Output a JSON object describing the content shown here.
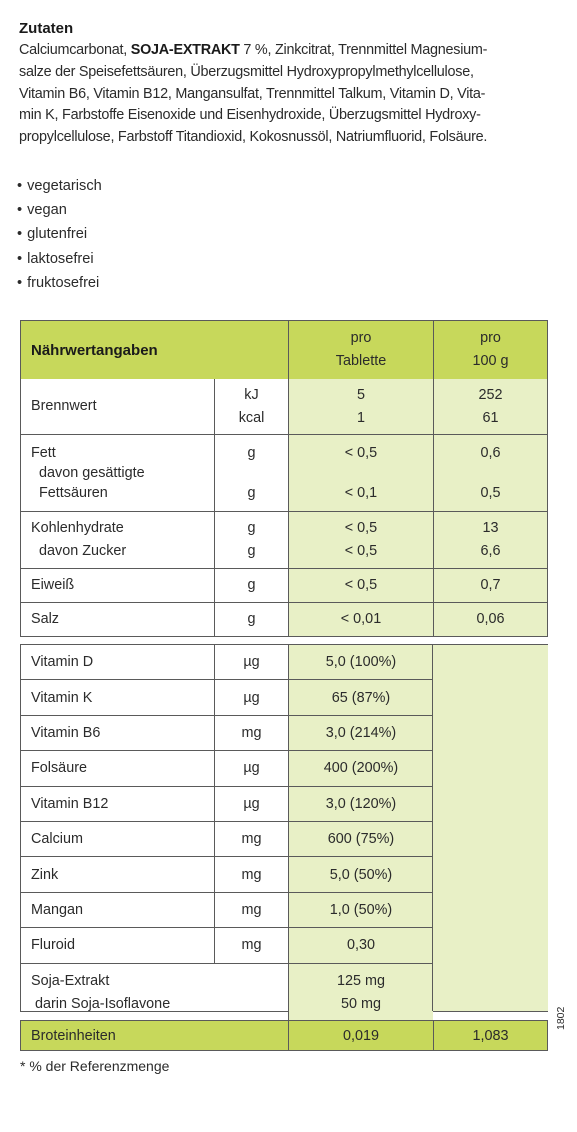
{
  "ingredients": {
    "heading": "Zutaten",
    "lines": [
      {
        "pre": "Calciumcarbonat, ",
        "bold": "SOJA-EXTRAKT",
        "post": " 7 %, Zinkcitrat, Trennmittel Magnesium-"
      },
      {
        "pre": "salze der Speisefettsäuren, Überzugsmittel Hydroxypropylmethylcellulose,",
        "bold": "",
        "post": ""
      },
      {
        "pre": "Vitamin B6, Vitamin B12, Mangansulfat, Trennmittel Talkum, Vitamin D, Vita-",
        "bold": "",
        "post": ""
      },
      {
        "pre": "min K, Farbstoffe Eisenoxide und Eisenhydroxide, Überzugsmittel Hydroxy-",
        "bold": "",
        "post": ""
      },
      {
        "pre": "propylcellulose, Farbstoff Titandioxid, Kokosnussöl, Natriumfluorid, Folsäure.",
        "bold": "",
        "post": ""
      }
    ]
  },
  "properties": [
    "vegetarisch",
    "vegan",
    "glutenfrei",
    "laktosefrei",
    "fruktosefrei"
  ],
  "nutrition": {
    "header": {
      "title": "Nährwertangaben",
      "col3_l1": "pro",
      "col3_l2": "Tablette",
      "col4_l1": "pro",
      "col4_l2": "100 g"
    },
    "rows": [
      {
        "label": [
          "Brennwert"
        ],
        "unit": [
          "kJ",
          "kcal"
        ],
        "tablet": [
          "5",
          "1"
        ],
        "per100": [
          "252",
          "61"
        ]
      },
      {
        "label": [
          "Fett",
          " davon gesättigte",
          " Fettsäuren"
        ],
        "unit": [
          "g",
          "",
          "g"
        ],
        "tablet": [
          "< 0,5",
          "",
          "< 0,1"
        ],
        "per100": [
          "0,6",
          "",
          "0,5"
        ]
      },
      {
        "label": [
          "Kohlenhydrate",
          " davon Zucker"
        ],
        "unit": [
          "g",
          "g"
        ],
        "tablet": [
          "< 0,5",
          "< 0,5"
        ],
        "per100": [
          "13",
          "6,6"
        ]
      },
      {
        "label": [
          "Eiweiß"
        ],
        "unit": [
          "g"
        ],
        "tablet": [
          "< 0,5"
        ],
        "per100": [
          "0,7"
        ]
      },
      {
        "label": [
          "Salz"
        ],
        "unit": [
          "g"
        ],
        "tablet": [
          "< 0,01"
        ],
        "per100": [
          "0,06"
        ]
      }
    ]
  },
  "vitamins": {
    "rows": [
      {
        "label": "Vitamin D",
        "unit": "µg",
        "tablet": "5,0 (100%)"
      },
      {
        "label": "Vitamin K",
        "unit": "µg",
        "tablet": "65 (87%)"
      },
      {
        "label": "Vitamin B6",
        "unit": "mg",
        "tablet": "3,0 (214%)"
      },
      {
        "label": "Folsäure",
        "unit": "µg",
        "tablet": "400 (200%)"
      },
      {
        "label": "Vitamin B12",
        "unit": "µg",
        "tablet": "3,0 (120%)"
      },
      {
        "label": "Calcium",
        "unit": "mg",
        "tablet": "600 (75%)"
      },
      {
        "label": "Zink",
        "unit": "mg",
        "tablet": "5,0 (50%)"
      },
      {
        "label": "Mangan",
        "unit": "mg",
        "tablet": "1,0 (50%)"
      },
      {
        "label": "Fluroid",
        "unit": "mg",
        "tablet": "0,30"
      }
    ],
    "soja": {
      "label1": "Soja-Extrakt",
      "label2": "darin Soja-Isoflavone",
      "val1": "125 mg",
      "val2": "50 mg"
    }
  },
  "broteinheiten": {
    "label": "Broteinheiten",
    "tablet": "0,019",
    "per100": "1,083"
  },
  "footnote": "* % der Referenzmenge",
  "code": "1802",
  "colors": {
    "header_green": "#c7d85b",
    "light_green": "#e8f0c6",
    "border": "#5a5a5a"
  }
}
